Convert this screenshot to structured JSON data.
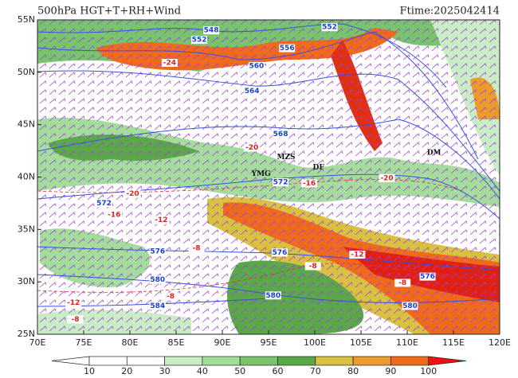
{
  "header": {
    "title": "500hPa HGT+T+RH+Wind",
    "ftime": "Ftime:2025042414"
  },
  "map": {
    "lon_range": [
      70,
      120
    ],
    "lat_range": [
      25,
      55
    ],
    "lon_ticks": [
      {
        "value": 70,
        "label": "70E"
      },
      {
        "value": 75,
        "label": "75E"
      },
      {
        "value": 80,
        "label": "80E"
      },
      {
        "value": 85,
        "label": "85E"
      },
      {
        "value": 90,
        "label": "90E"
      },
      {
        "value": 95,
        "label": "95E"
      },
      {
        "value": 100,
        "label": "100E"
      },
      {
        "value": 105,
        "label": "105E"
      },
      {
        "value": 110,
        "label": "110E"
      },
      {
        "value": 115,
        "label": "115E"
      },
      {
        "value": 120,
        "label": "120E"
      }
    ],
    "lat_ticks": [
      {
        "value": 25,
        "label": "25N"
      },
      {
        "value": 30,
        "label": "30N"
      },
      {
        "value": 35,
        "label": "35N"
      },
      {
        "value": 40,
        "label": "40N"
      },
      {
        "value": 45,
        "label": "45N"
      },
      {
        "value": 50,
        "label": "50N"
      },
      {
        "value": 55,
        "label": "55N"
      }
    ],
    "height_labels": [
      {
        "value": 548,
        "lon": 88.8,
        "lat": 54.0
      },
      {
        "value": 552,
        "lon": 87.5,
        "lat": 53.1
      },
      {
        "value": 552,
        "lon": 101.6,
        "lat": 54.3
      },
      {
        "value": 556,
        "lon": 97.0,
        "lat": 52.3
      },
      {
        "value": 560,
        "lon": 93.7,
        "lat": 50.6
      },
      {
        "value": 564,
        "lon": 93.2,
        "lat": 48.2
      },
      {
        "value": 568,
        "lon": 96.3,
        "lat": 44.1
      },
      {
        "value": 572,
        "lon": 96.3,
        "lat": 39.5
      },
      {
        "value": 572,
        "lon": 77.2,
        "lat": 37.5
      },
      {
        "value": 576,
        "lon": 83.0,
        "lat": 32.9
      },
      {
        "value": 576,
        "lon": 96.2,
        "lat": 32.8
      },
      {
        "value": 576,
        "lon": 112.2,
        "lat": 30.5
      },
      {
        "value": 580,
        "lon": 83.0,
        "lat": 30.2
      },
      {
        "value": 580,
        "lon": 95.5,
        "lat": 28.7
      },
      {
        "value": 580,
        "lon": 110.3,
        "lat": 27.7
      },
      {
        "value": 584,
        "lon": 83.0,
        "lat": 27.7
      }
    ],
    "temperature_labels": [
      {
        "value": -24,
        "lon": 84.3,
        "lat": 50.9
      },
      {
        "value": -20,
        "lon": 93.2,
        "lat": 42.8
      },
      {
        "value": -20,
        "lon": 80.3,
        "lat": 38.4
      },
      {
        "value": -20,
        "lon": 107.8,
        "lat": 39.9
      },
      {
        "value": -16,
        "lon": 99.4,
        "lat": 39.4
      },
      {
        "value": -16,
        "lon": 78.3,
        "lat": 36.4
      },
      {
        "value": -12,
        "lon": 83.4,
        "lat": 35.9
      },
      {
        "value": -8,
        "lon": 87.2,
        "lat": 33.2
      },
      {
        "value": -8,
        "lon": 99.8,
        "lat": 31.5
      },
      {
        "value": -12,
        "lon": 104.6,
        "lat": 32.6
      },
      {
        "value": -8,
        "lon": 109.5,
        "lat": 29.9
      },
      {
        "value": -12,
        "lon": 73.9,
        "lat": 28.0
      },
      {
        "value": -8,
        "lon": 84.4,
        "lat": 28.6
      },
      {
        "value": -8,
        "lon": 74.1,
        "lat": 26.4
      }
    ],
    "stations": [
      {
        "name": "YMG",
        "lon": 94.2,
        "lat": 40.3
      },
      {
        "name": "MZS",
        "lon": 96.9,
        "lat": 41.9
      },
      {
        "name": "DF",
        "lon": 100.4,
        "lat": 40.9
      },
      {
        "name": "DM",
        "lon": 112.9,
        "lat": 42.3
      }
    ]
  },
  "colorbar": {
    "levels": [
      10,
      20,
      30,
      40,
      50,
      60,
      70,
      80,
      90,
      100
    ],
    "colors": [
      "#ffffff",
      "#ffffff",
      "#ffffff",
      "#c8ecc4",
      "#a4dc9c",
      "#78c46c",
      "#5aa848",
      "#d8c040",
      "#eb9a2c",
      "#f06a1c",
      "#f01010"
    ]
  }
}
